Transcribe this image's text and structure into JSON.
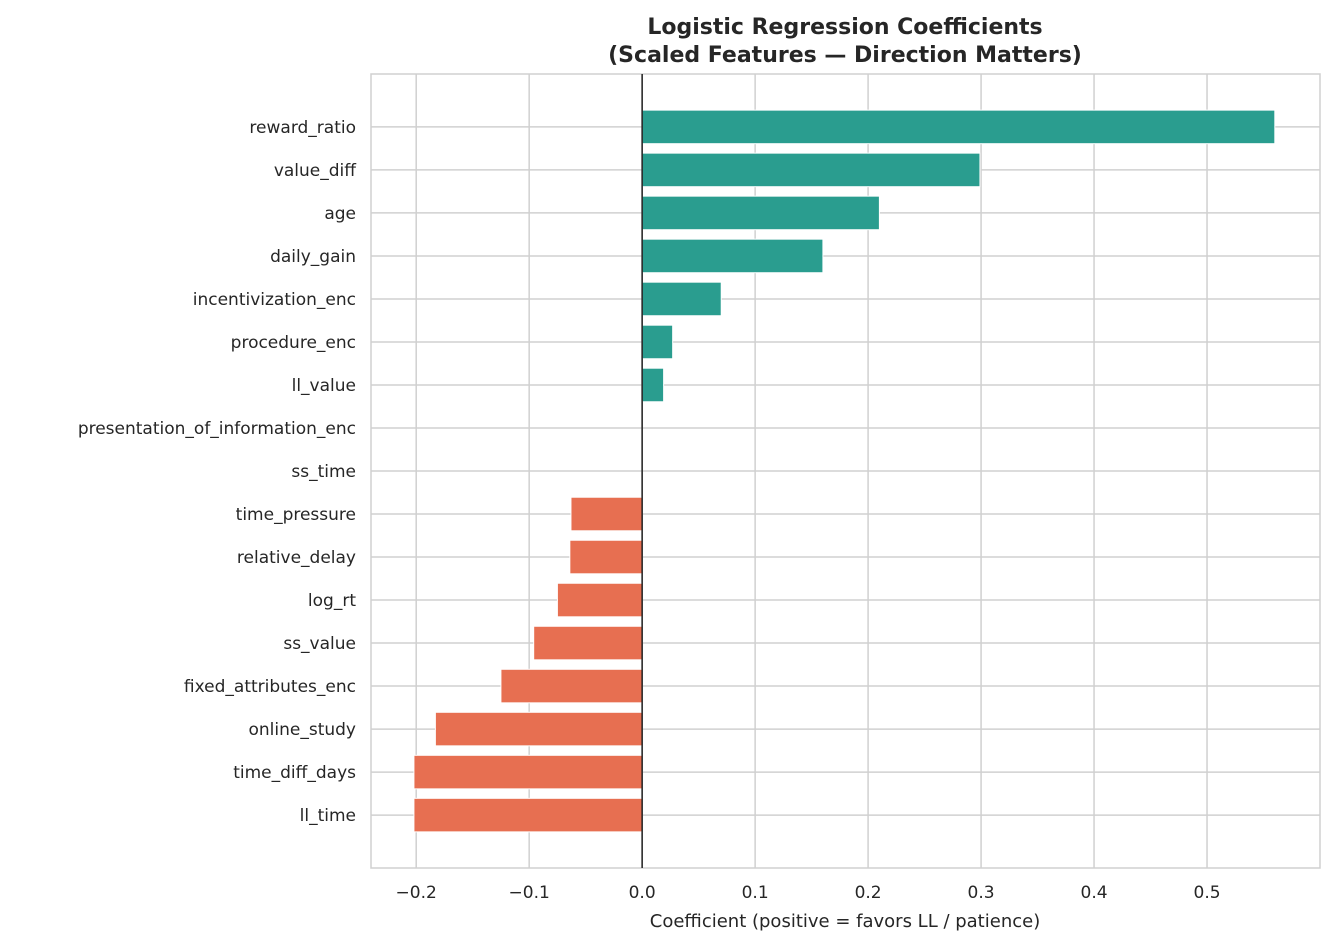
{
  "chart_data": {
    "type": "bar",
    "orientation": "horizontal",
    "title_line1": "Logistic Regression Coefficients",
    "title_line2": "(Scaled Features — Direction Matters)",
    "xlabel": "Coefficient (positive = favors LL / patience)",
    "ylabel": "",
    "xlim": [
      -0.24,
      0.6
    ],
    "xticks": [
      -0.2,
      -0.1,
      0.0,
      0.1,
      0.2,
      0.3,
      0.4,
      0.5
    ],
    "xtick_labels": [
      "−0.2",
      "−0.1",
      "0.0",
      "0.1",
      "0.2",
      "0.3",
      "0.4",
      "0.5"
    ],
    "grid": true,
    "colors": {
      "positive": "#2a9d8f",
      "negative": "#e76f51",
      "zero_line": "#222222",
      "grid": "#d0d0d0"
    },
    "categories": [
      "reward_ratio",
      "value_diff",
      "age",
      "daily_gain",
      "incentivization_enc",
      "procedure_enc",
      "ll_value",
      "presentation_of_information_enc",
      "ss_time",
      "time_pressure",
      "relative_delay",
      "log_rt",
      "ss_value",
      "fixed_attributes_enc",
      "online_study",
      "time_diff_days",
      "ll_time"
    ],
    "values": [
      0.56,
      0.299,
      0.21,
      0.16,
      0.07,
      0.027,
      0.019,
      0.0,
      0.0,
      -0.063,
      -0.064,
      -0.075,
      -0.096,
      -0.125,
      -0.183,
      -0.202,
      -0.202
    ]
  }
}
